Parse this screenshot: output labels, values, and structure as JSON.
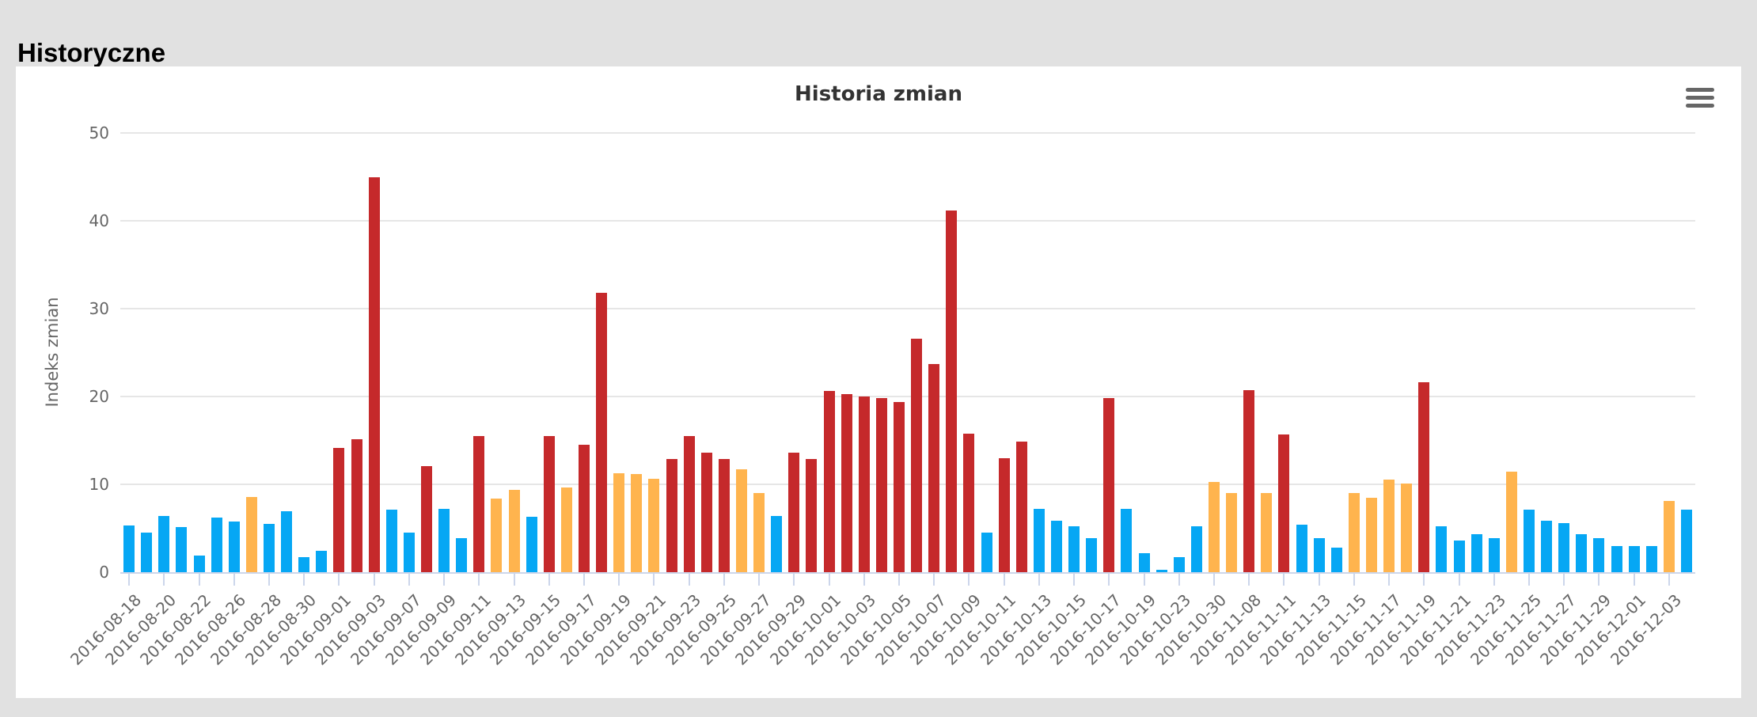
{
  "page": {
    "heading": "Historyczne",
    "background": "#E1E1E1"
  },
  "chart": {
    "context_menu_icon": "hamburger-menu-icon",
    "y_axis_ticks": [
      0,
      10,
      20,
      30,
      40,
      50
    ]
  },
  "chart_data": {
    "type": "bar",
    "title": "Historia zmian",
    "xlabel": "",
    "ylabel": "Indeks zmian",
    "ylim": [
      0,
      50
    ],
    "grid": true,
    "legend": false,
    "x_tick_label_rotation": -45,
    "colors": {
      "blue": "#06A7F4",
      "orange": "#FFB44E",
      "red": "#C5292B"
    },
    "bars": [
      {
        "label": "2016-08-18",
        "value": 5.3,
        "color": "blue"
      },
      {
        "label": "",
        "value": 4.5,
        "color": "blue"
      },
      {
        "label": "2016-08-20",
        "value": 6.4,
        "color": "blue"
      },
      {
        "label": "",
        "value": 5.1,
        "color": "blue"
      },
      {
        "label": "2016-08-22",
        "value": 1.9,
        "color": "blue"
      },
      {
        "label": "",
        "value": 6.2,
        "color": "blue"
      },
      {
        "label": "2016-08-26",
        "value": 5.8,
        "color": "blue"
      },
      {
        "label": "",
        "value": 8.6,
        "color": "orange"
      },
      {
        "label": "2016-08-28",
        "value": 5.5,
        "color": "blue"
      },
      {
        "label": "",
        "value": 6.9,
        "color": "blue"
      },
      {
        "label": "2016-08-30",
        "value": 1.7,
        "color": "blue"
      },
      {
        "label": "",
        "value": 2.4,
        "color": "blue"
      },
      {
        "label": "2016-09-01",
        "value": 14.1,
        "color": "red"
      },
      {
        "label": "",
        "value": 15.1,
        "color": "red"
      },
      {
        "label": "2016-09-03",
        "value": 45.0,
        "color": "red"
      },
      {
        "label": "",
        "value": 7.1,
        "color": "blue"
      },
      {
        "label": "2016-09-07",
        "value": 4.5,
        "color": "blue"
      },
      {
        "label": "",
        "value": 12.1,
        "color": "red"
      },
      {
        "label": "2016-09-09",
        "value": 7.2,
        "color": "blue"
      },
      {
        "label": "",
        "value": 3.9,
        "color": "blue"
      },
      {
        "label": "2016-09-11",
        "value": 15.5,
        "color": "red"
      },
      {
        "label": "",
        "value": 8.4,
        "color": "orange"
      },
      {
        "label": "2016-09-13",
        "value": 9.4,
        "color": "orange"
      },
      {
        "label": "",
        "value": 6.3,
        "color": "blue"
      },
      {
        "label": "2016-09-15",
        "value": 15.5,
        "color": "red"
      },
      {
        "label": "",
        "value": 9.6,
        "color": "orange"
      },
      {
        "label": "2016-09-17",
        "value": 14.5,
        "color": "red"
      },
      {
        "label": "",
        "value": 31.8,
        "color": "red"
      },
      {
        "label": "2016-09-19",
        "value": 11.3,
        "color": "orange"
      },
      {
        "label": "",
        "value": 11.2,
        "color": "orange"
      },
      {
        "label": "2016-09-21",
        "value": 10.6,
        "color": "orange"
      },
      {
        "label": "",
        "value": 12.9,
        "color": "red"
      },
      {
        "label": "2016-09-23",
        "value": 15.5,
        "color": "red"
      },
      {
        "label": "",
        "value": 13.6,
        "color": "red"
      },
      {
        "label": "2016-09-25",
        "value": 12.9,
        "color": "red"
      },
      {
        "label": "",
        "value": 11.7,
        "color": "orange"
      },
      {
        "label": "2016-09-27",
        "value": 9.0,
        "color": "orange"
      },
      {
        "label": "",
        "value": 6.4,
        "color": "blue"
      },
      {
        "label": "2016-09-29",
        "value": 13.6,
        "color": "red"
      },
      {
        "label": "",
        "value": 12.9,
        "color": "red"
      },
      {
        "label": "2016-10-01",
        "value": 20.6,
        "color": "red"
      },
      {
        "label": "",
        "value": 20.3,
        "color": "red"
      },
      {
        "label": "2016-10-03",
        "value": 20.0,
        "color": "red"
      },
      {
        "label": "",
        "value": 19.8,
        "color": "red"
      },
      {
        "label": "2016-10-05",
        "value": 19.4,
        "color": "red"
      },
      {
        "label": "",
        "value": 26.6,
        "color": "red"
      },
      {
        "label": "2016-10-07",
        "value": 23.7,
        "color": "red"
      },
      {
        "label": "",
        "value": 41.2,
        "color": "red"
      },
      {
        "label": "2016-10-09",
        "value": 15.8,
        "color": "red"
      },
      {
        "label": "",
        "value": 4.5,
        "color": "blue"
      },
      {
        "label": "2016-10-11",
        "value": 13.0,
        "color": "red"
      },
      {
        "label": "",
        "value": 14.9,
        "color": "red"
      },
      {
        "label": "2016-10-13",
        "value": 7.2,
        "color": "blue"
      },
      {
        "label": "",
        "value": 5.9,
        "color": "blue"
      },
      {
        "label": "2016-10-15",
        "value": 5.2,
        "color": "blue"
      },
      {
        "label": "",
        "value": 3.9,
        "color": "blue"
      },
      {
        "label": "2016-10-17",
        "value": 19.8,
        "color": "red"
      },
      {
        "label": "",
        "value": 7.2,
        "color": "blue"
      },
      {
        "label": "2016-10-19",
        "value": 2.2,
        "color": "blue"
      },
      {
        "label": "",
        "value": 0.3,
        "color": "blue"
      },
      {
        "label": "2016-10-23",
        "value": 1.7,
        "color": "blue"
      },
      {
        "label": "",
        "value": 5.2,
        "color": "blue"
      },
      {
        "label": "2016-10-30",
        "value": 10.3,
        "color": "orange"
      },
      {
        "label": "",
        "value": 9.0,
        "color": "orange"
      },
      {
        "label": "2016-11-08",
        "value": 20.7,
        "color": "red"
      },
      {
        "label": "",
        "value": 9.0,
        "color": "orange"
      },
      {
        "label": "2016-11-11",
        "value": 15.7,
        "color": "red"
      },
      {
        "label": "",
        "value": 5.4,
        "color": "blue"
      },
      {
        "label": "2016-11-13",
        "value": 3.9,
        "color": "blue"
      },
      {
        "label": "",
        "value": 2.8,
        "color": "blue"
      },
      {
        "label": "2016-11-15",
        "value": 9.0,
        "color": "orange"
      },
      {
        "label": "",
        "value": 8.5,
        "color": "orange"
      },
      {
        "label": "2016-11-17",
        "value": 10.5,
        "color": "orange"
      },
      {
        "label": "",
        "value": 10.1,
        "color": "orange"
      },
      {
        "label": "2016-11-19",
        "value": 21.6,
        "color": "red"
      },
      {
        "label": "",
        "value": 5.2,
        "color": "blue"
      },
      {
        "label": "2016-11-21",
        "value": 3.6,
        "color": "blue"
      },
      {
        "label": "",
        "value": 4.3,
        "color": "blue"
      },
      {
        "label": "2016-11-23",
        "value": 3.9,
        "color": "blue"
      },
      {
        "label": "",
        "value": 11.4,
        "color": "orange"
      },
      {
        "label": "2016-11-25",
        "value": 7.1,
        "color": "blue"
      },
      {
        "label": "",
        "value": 5.9,
        "color": "blue"
      },
      {
        "label": "2016-11-27",
        "value": 5.6,
        "color": "blue"
      },
      {
        "label": "",
        "value": 4.3,
        "color": "blue"
      },
      {
        "label": "2016-11-29",
        "value": 3.9,
        "color": "blue"
      },
      {
        "label": "",
        "value": 3.0,
        "color": "blue"
      },
      {
        "label": "2016-12-01",
        "value": 3.0,
        "color": "blue"
      },
      {
        "label": "",
        "value": 3.0,
        "color": "blue"
      },
      {
        "label": "2016-12-03",
        "value": 8.1,
        "color": "orange"
      },
      {
        "label": "",
        "value": 7.1,
        "color": "blue"
      }
    ]
  }
}
